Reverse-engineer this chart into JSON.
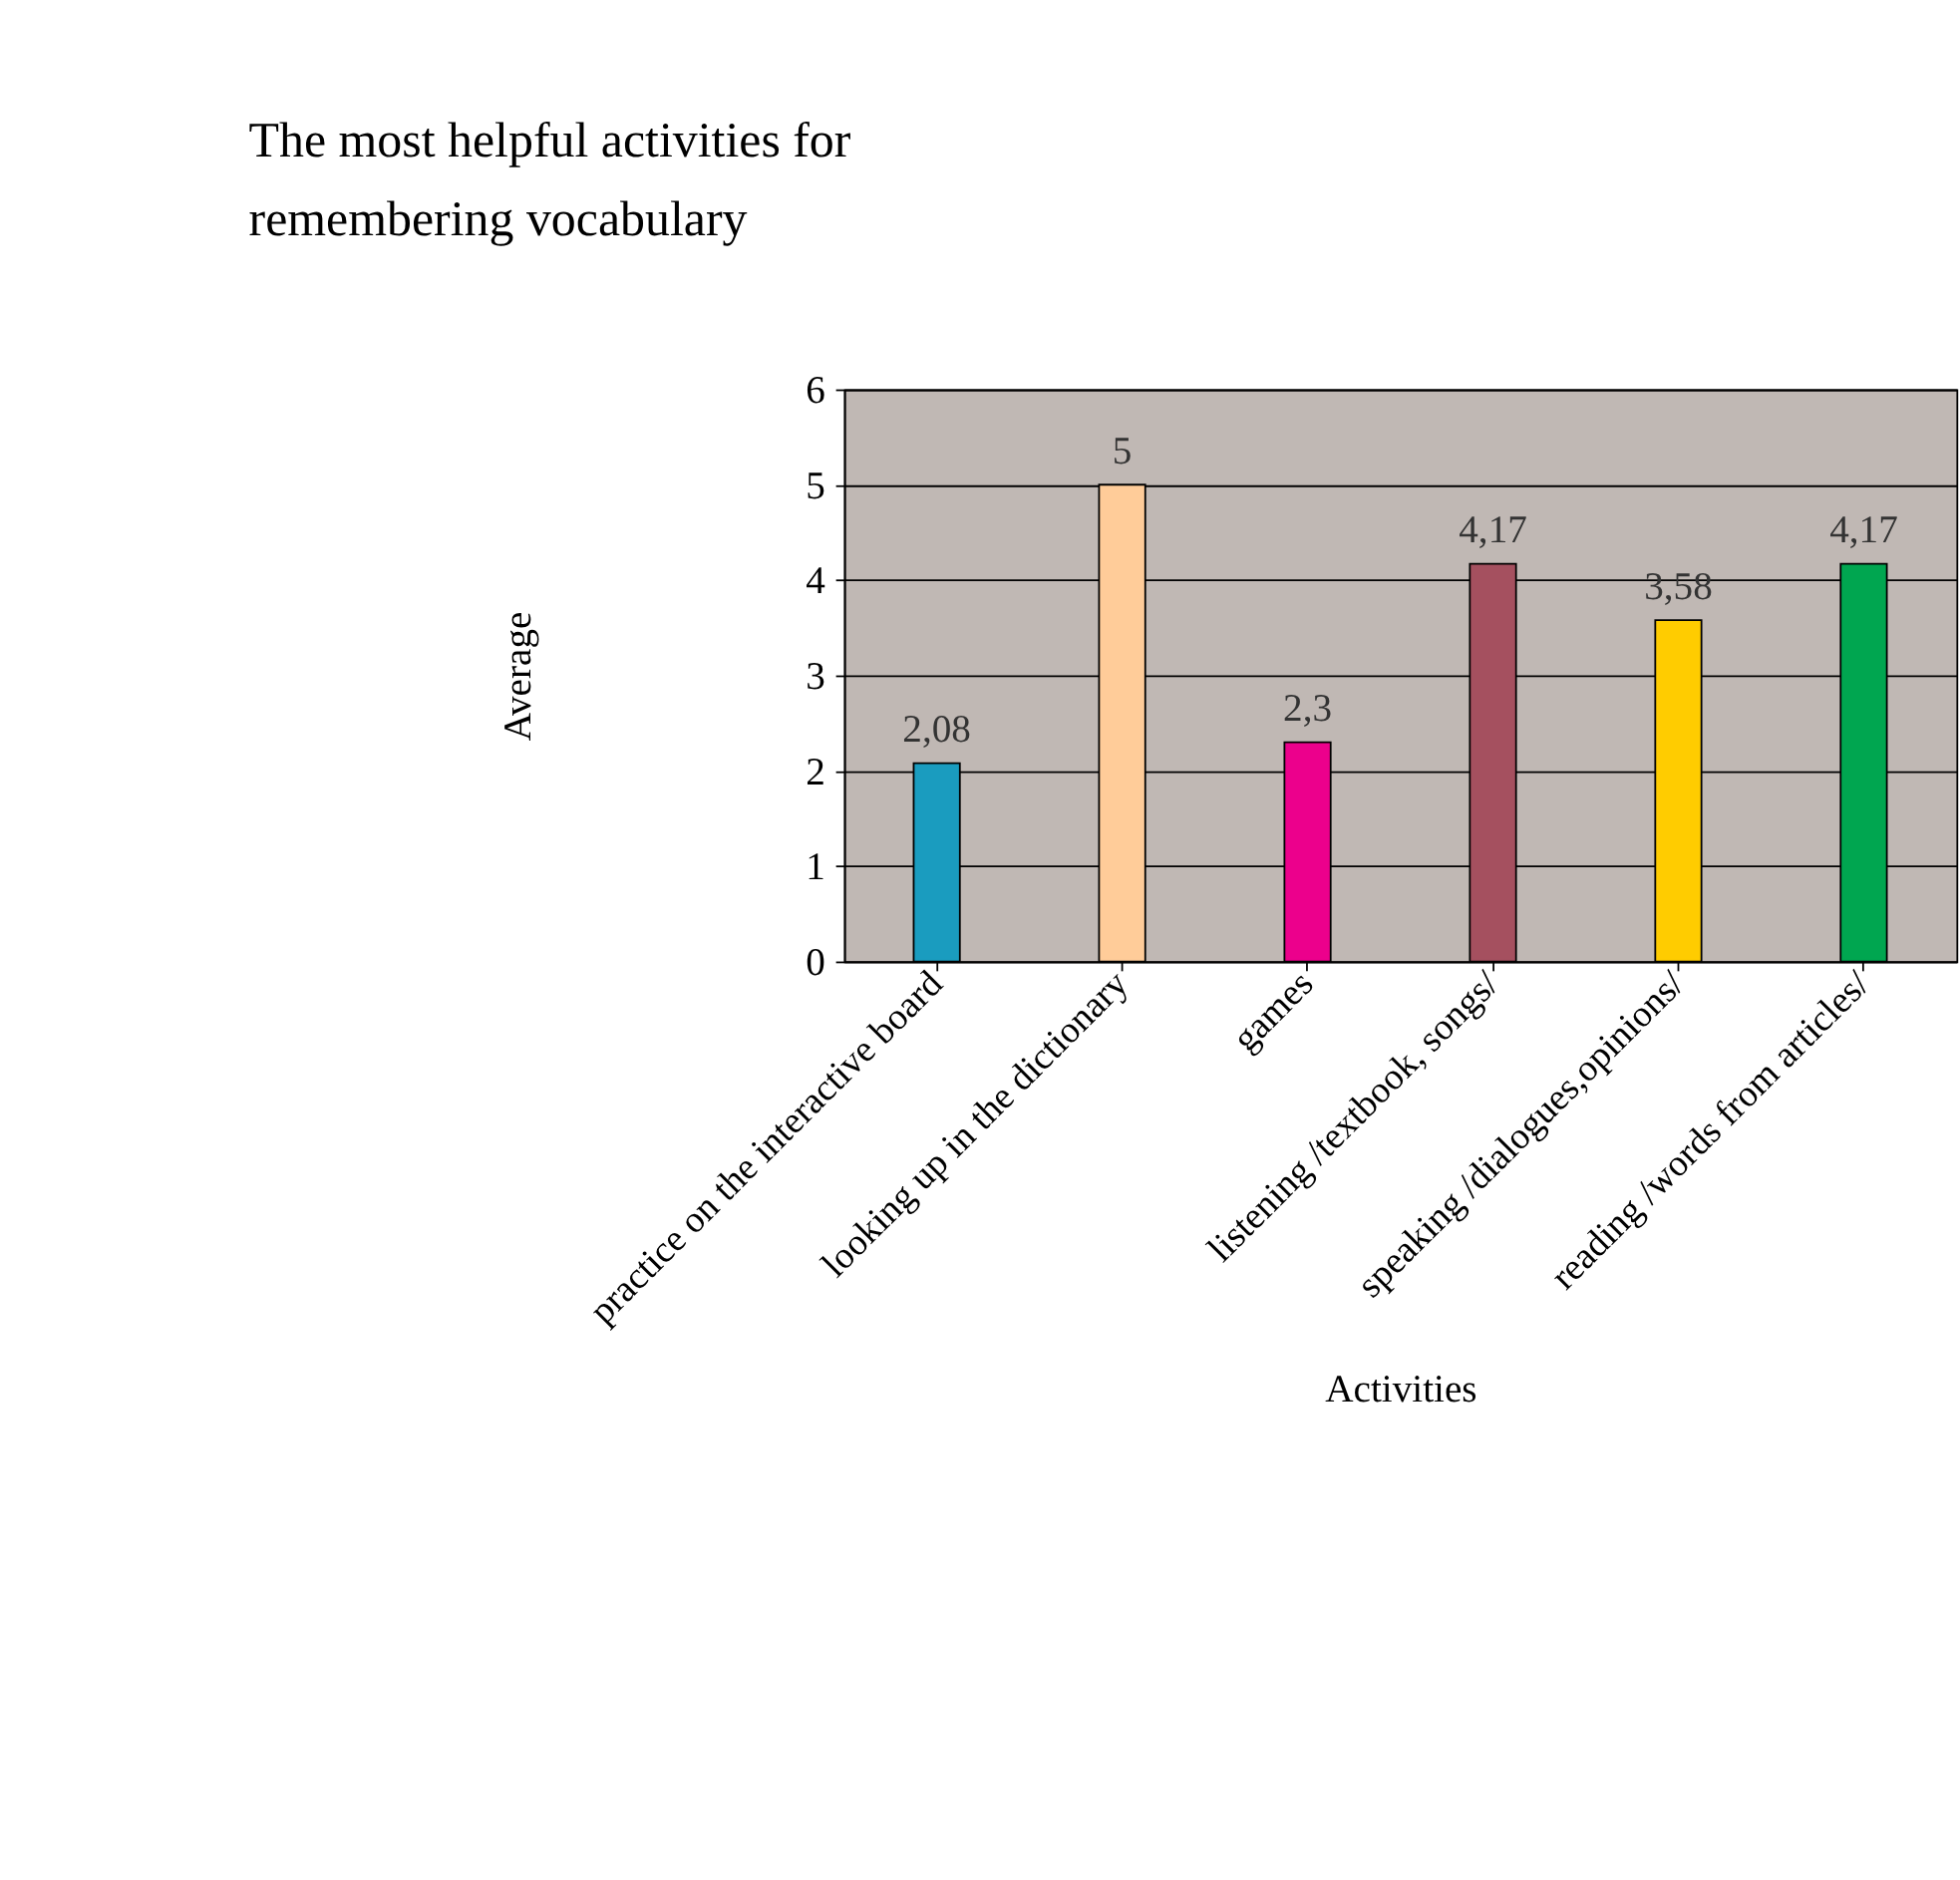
{
  "chart_data": {
    "type": "bar",
    "title": "The most helpful activities for remembering vocabulary",
    "xlabel": "Activities",
    "ylabel": "Average",
    "categories": [
      "practice on the interactive board",
      "looking up in the dictionary",
      "games",
      "listening /textbook, songs/",
      "speaking /dialogues,opinions/",
      "reading /words from articles/"
    ],
    "values": [
      2.08,
      5,
      2.3,
      4.17,
      3.58,
      4.17
    ],
    "value_labels": [
      "2,08",
      "5",
      "2,3",
      "4,17",
      "3,58",
      "4,17"
    ],
    "colors": [
      "#1a9cbf",
      "#ffcc99",
      "#ec008c",
      "#a5505f",
      "#ffcc00",
      "#00a650"
    ],
    "ylim": [
      0,
      6
    ],
    "yticks": [
      0,
      1,
      2,
      3,
      4,
      5,
      6
    ],
    "grid": "y"
  }
}
